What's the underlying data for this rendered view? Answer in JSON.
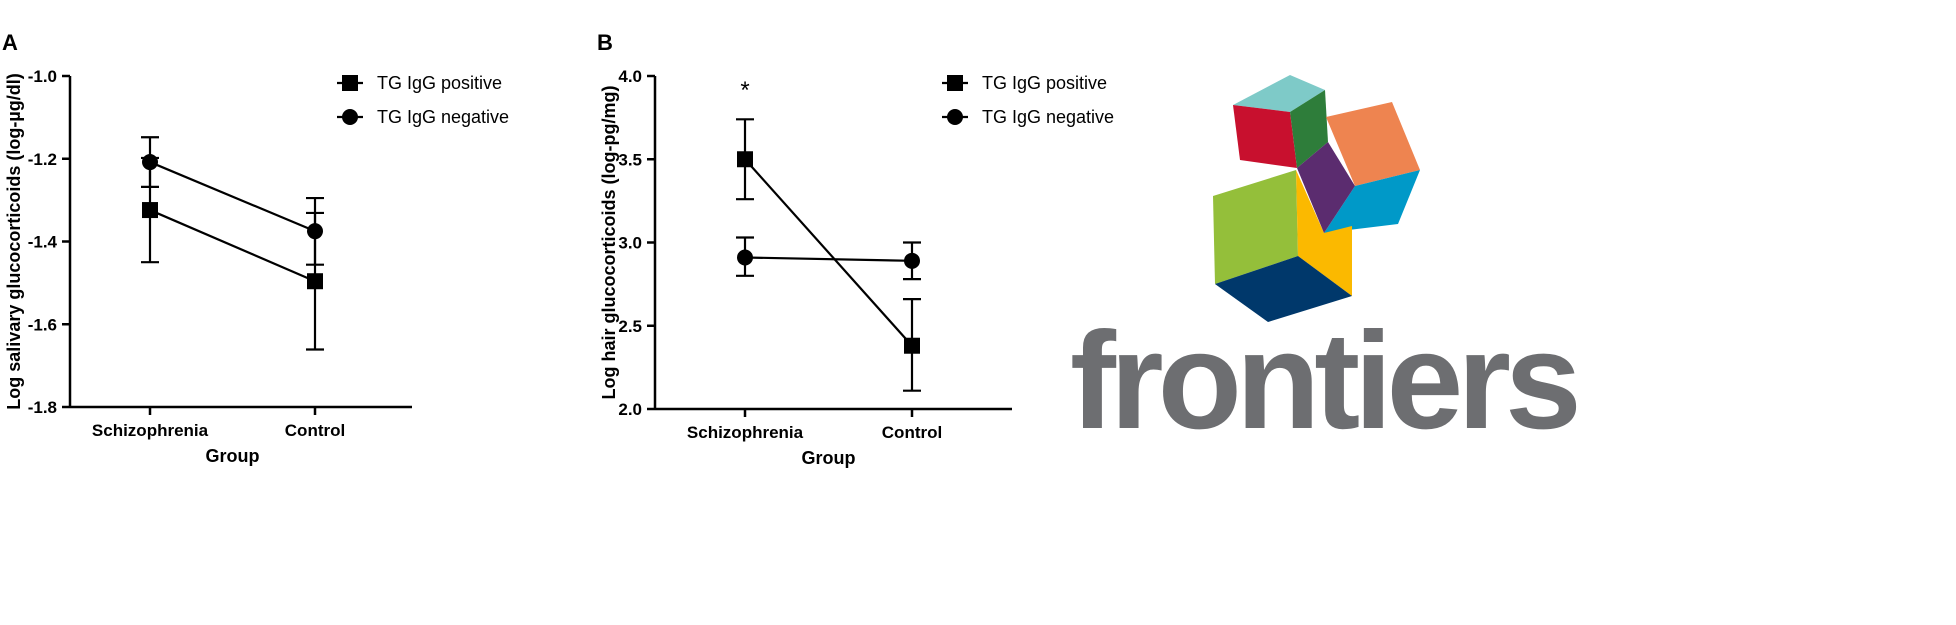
{
  "chart_data": [
    {
      "panel": "A",
      "type": "line",
      "categories": [
        "Schizophrenia",
        "Control"
      ],
      "xlabel": "Group",
      "ylabel": "Log salivary glucocorticoids (log-µg/dl)",
      "ylim": [
        -1.8,
        -1.0
      ],
      "yticks": [
        "-1.8",
        "-1.6",
        "-1.4",
        "-1.2",
        "-1.0"
      ],
      "legend_position": "top-right",
      "series": [
        {
          "name": "TG IgG positive",
          "marker": "square",
          "values": [
            -1.324,
            -1.496
          ],
          "err_low": [
            -1.45,
            -1.661
          ],
          "err_high": [
            -1.198,
            -1.331
          ]
        },
        {
          "name": "TG IgG negative",
          "marker": "circle",
          "values": [
            -1.208,
            -1.375
          ],
          "err_low": [
            -1.268,
            -1.456
          ],
          "err_high": [
            -1.148,
            -1.295
          ]
        }
      ],
      "annotations": []
    },
    {
      "panel": "B",
      "type": "line",
      "categories": [
        "Schizophrenia",
        "Control"
      ],
      "xlabel": "Group",
      "ylabel": "Log hair glucocorticoids (log-pg/mg)",
      "ylim": [
        2.0,
        4.0
      ],
      "yticks": [
        "2.0",
        "2.5",
        "3.0",
        "3.5",
        "4.0"
      ],
      "legend_position": "top-right",
      "series": [
        {
          "name": "TG IgG positive",
          "marker": "square",
          "values": [
            3.5,
            2.38
          ],
          "err_low": [
            3.26,
            2.11
          ],
          "err_high": [
            3.74,
            2.66
          ]
        },
        {
          "name": "TG IgG negative",
          "marker": "circle",
          "values": [
            2.91,
            2.89
          ],
          "err_low": [
            2.8,
            2.78
          ],
          "err_high": [
            3.03,
            3.0
          ]
        }
      ],
      "annotations": [
        {
          "text": "*",
          "category": "Schizophrenia"
        }
      ]
    }
  ],
  "logo": {
    "text": "frontiers",
    "colors": [
      "#7ecac8",
      "#c8102e",
      "#2e7d3a",
      "#5b2c6f",
      "#ee8450",
      "#0099c8",
      "#94bf3a",
      "#fbb900",
      "#00386b"
    ]
  }
}
